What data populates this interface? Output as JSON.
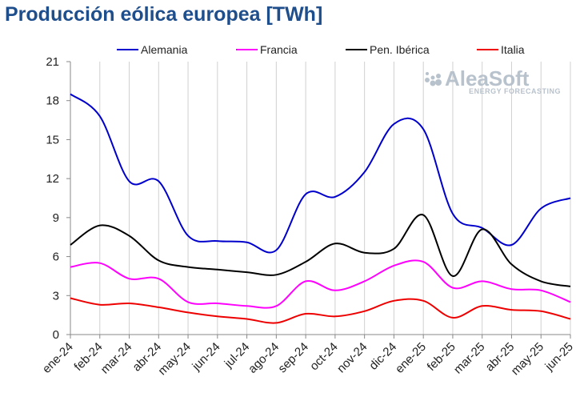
{
  "chart_data": {
    "type": "line",
    "title": "Producción eólica europea [TWh]",
    "categories": [
      "ene-24",
      "feb-24",
      "mar-24",
      "abr-24",
      "may-24",
      "jun-24",
      "jul-24",
      "ago-24",
      "sep-24",
      "oct-24",
      "nov-24",
      "dic-24",
      "ene-25",
      "feb-25",
      "mar-25",
      "abr-25",
      "may-25",
      "jun-25"
    ],
    "ylim": [
      0,
      21
    ],
    "yticks": [
      0,
      3,
      6,
      9,
      12,
      15,
      18,
      21
    ],
    "grid": "vertical",
    "legend_position": "top",
    "series": [
      {
        "name": "Alemania",
        "color": "#0000cc",
        "values": [
          18.5,
          16.8,
          11.8,
          11.8,
          7.6,
          7.2,
          7.1,
          6.5,
          10.8,
          10.6,
          12.5,
          16.2,
          15.8,
          9.3,
          8.2,
          6.9,
          9.7,
          10.5
        ]
      },
      {
        "name": "Francia",
        "color": "#ff00ff",
        "values": [
          5.2,
          5.5,
          4.3,
          4.3,
          2.5,
          2.4,
          2.2,
          2.2,
          4.1,
          3.4,
          4.1,
          5.3,
          5.6,
          3.6,
          4.1,
          3.5,
          3.4,
          2.5
        ]
      },
      {
        "name": "Pen. Ibérica",
        "color": "#000000",
        "values": [
          6.9,
          8.4,
          7.6,
          5.7,
          5.2,
          5.0,
          4.8,
          4.6,
          5.6,
          7.0,
          6.3,
          6.6,
          9.2,
          4.5,
          8.1,
          5.4,
          4.1,
          3.7
        ]
      },
      {
        "name": "Italia",
        "color": "#ee0000",
        "values": [
          2.8,
          2.3,
          2.4,
          2.1,
          1.7,
          1.4,
          1.2,
          0.9,
          1.6,
          1.4,
          1.8,
          2.6,
          2.6,
          1.3,
          2.2,
          1.9,
          1.8,
          1.2
        ]
      }
    ],
    "watermark": {
      "main": "AleaSoft",
      "sub": "ENERGY FORECASTING"
    }
  }
}
